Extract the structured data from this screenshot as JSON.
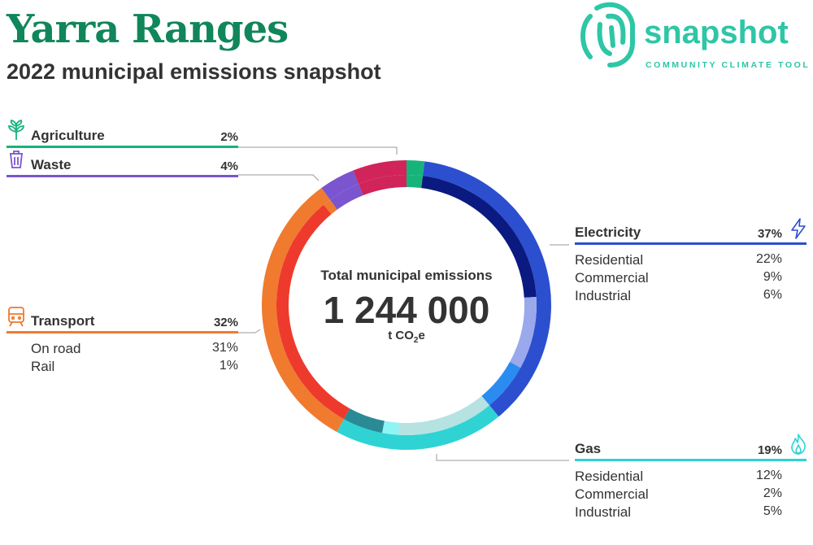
{
  "header": {
    "title": "Yarra Ranges",
    "subtitle": "2022 municipal emissions snapshot"
  },
  "logo": {
    "word": "snapshot",
    "tagline": "COMMUNITY CLIMATE TOOL"
  },
  "center": {
    "label": "Total municipal emissions",
    "value": "1 244 000",
    "unit_prefix": "t CO",
    "unit_sub": "2",
    "unit_suffix": "e"
  },
  "colors": {
    "brand": "#10865a",
    "logo": "#2ec6a6",
    "agriculture": "#16b47a",
    "waste": "#7a55cf",
    "electricity": "#2c4fcf",
    "gas": "#2fd3d3",
    "transport": "#f07a2e",
    "other": "#d0245a",
    "leader": "#9a9a9a"
  },
  "chart_data": {
    "type": "pie",
    "title": "Total municipal emissions",
    "total": "1 244 000",
    "unit": "t CO2e",
    "sectors": [
      {
        "name": "Agriculture",
        "percent": 2,
        "icon": "leaf-icon"
      },
      {
        "name": "Waste",
        "percent": 4,
        "icon": "waste-bin-icon"
      },
      {
        "name": "Electricity",
        "percent": 37,
        "icon": "lightning-icon",
        "subsectors": [
          {
            "name": "Residential",
            "percent": 22
          },
          {
            "name": "Commercial",
            "percent": 9
          },
          {
            "name": "Industrial",
            "percent": 6
          }
        ]
      },
      {
        "name": "Gas",
        "percent": 19,
        "icon": "flame-icon",
        "subsectors": [
          {
            "name": "Residential",
            "percent": 12
          },
          {
            "name": "Commercial",
            "percent": 2
          },
          {
            "name": "Industrial",
            "percent": 5
          }
        ]
      },
      {
        "name": "Transport",
        "percent": 32,
        "icon": "train-icon",
        "subsectors": [
          {
            "name": "On road",
            "percent": 31
          },
          {
            "name": "Rail",
            "percent": 1
          }
        ]
      }
    ],
    "unlabelled_percent": 6
  }
}
